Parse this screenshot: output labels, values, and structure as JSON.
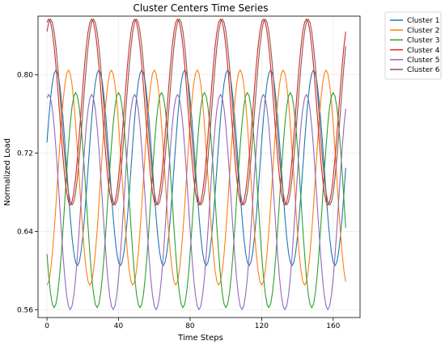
{
  "chart_data": {
    "type": "line",
    "title": "Cluster Centers Time Series",
    "xlabel": "Time Steps",
    "ylabel": "Normalized Load",
    "xlim": [
      -5,
      175
    ],
    "ylim": [
      0.552,
      0.86
    ],
    "xticks": [
      0,
      40,
      80,
      120,
      160
    ],
    "xtick_labels": [
      "0",
      "40",
      "80",
      "120",
      "160"
    ],
    "yticks": [
      0.56,
      0.64,
      0.72,
      0.8
    ],
    "ytick_labels": [
      "0.56",
      "0.64",
      "0.72",
      "0.80"
    ],
    "grid": true,
    "legend_position": "outside-top-right",
    "x_start": 0,
    "x_end": 167,
    "x_step": 1,
    "series": [
      {
        "name": "Cluster 1",
        "color": "#1f77b4",
        "mean": 0.705,
        "amplitude": 0.1,
        "period": 24,
        "peak_at": 5
      },
      {
        "name": "Cluster 2",
        "color": "#ff7f0e",
        "mean": 0.695,
        "amplitude": 0.11,
        "period": 24,
        "peak_at": 12
      },
      {
        "name": "Cluster 3",
        "color": "#2ca02c",
        "mean": 0.672,
        "amplitude": 0.11,
        "period": 24,
        "peak_at": 16
      },
      {
        "name": "Cluster 4",
        "color": "#d62728",
        "mean": 0.762,
        "amplitude": 0.095,
        "period": 24,
        "peak_at": 1
      },
      {
        "name": "Cluster 5",
        "color": "#9467bd",
        "mean": 0.67,
        "amplitude": 0.11,
        "period": 24,
        "peak_at": 1
      },
      {
        "name": "Cluster 6",
        "color": "#8c564b",
        "mean": 0.762,
        "amplitude": 0.095,
        "period": 24,
        "peak_at": 2
      }
    ]
  }
}
